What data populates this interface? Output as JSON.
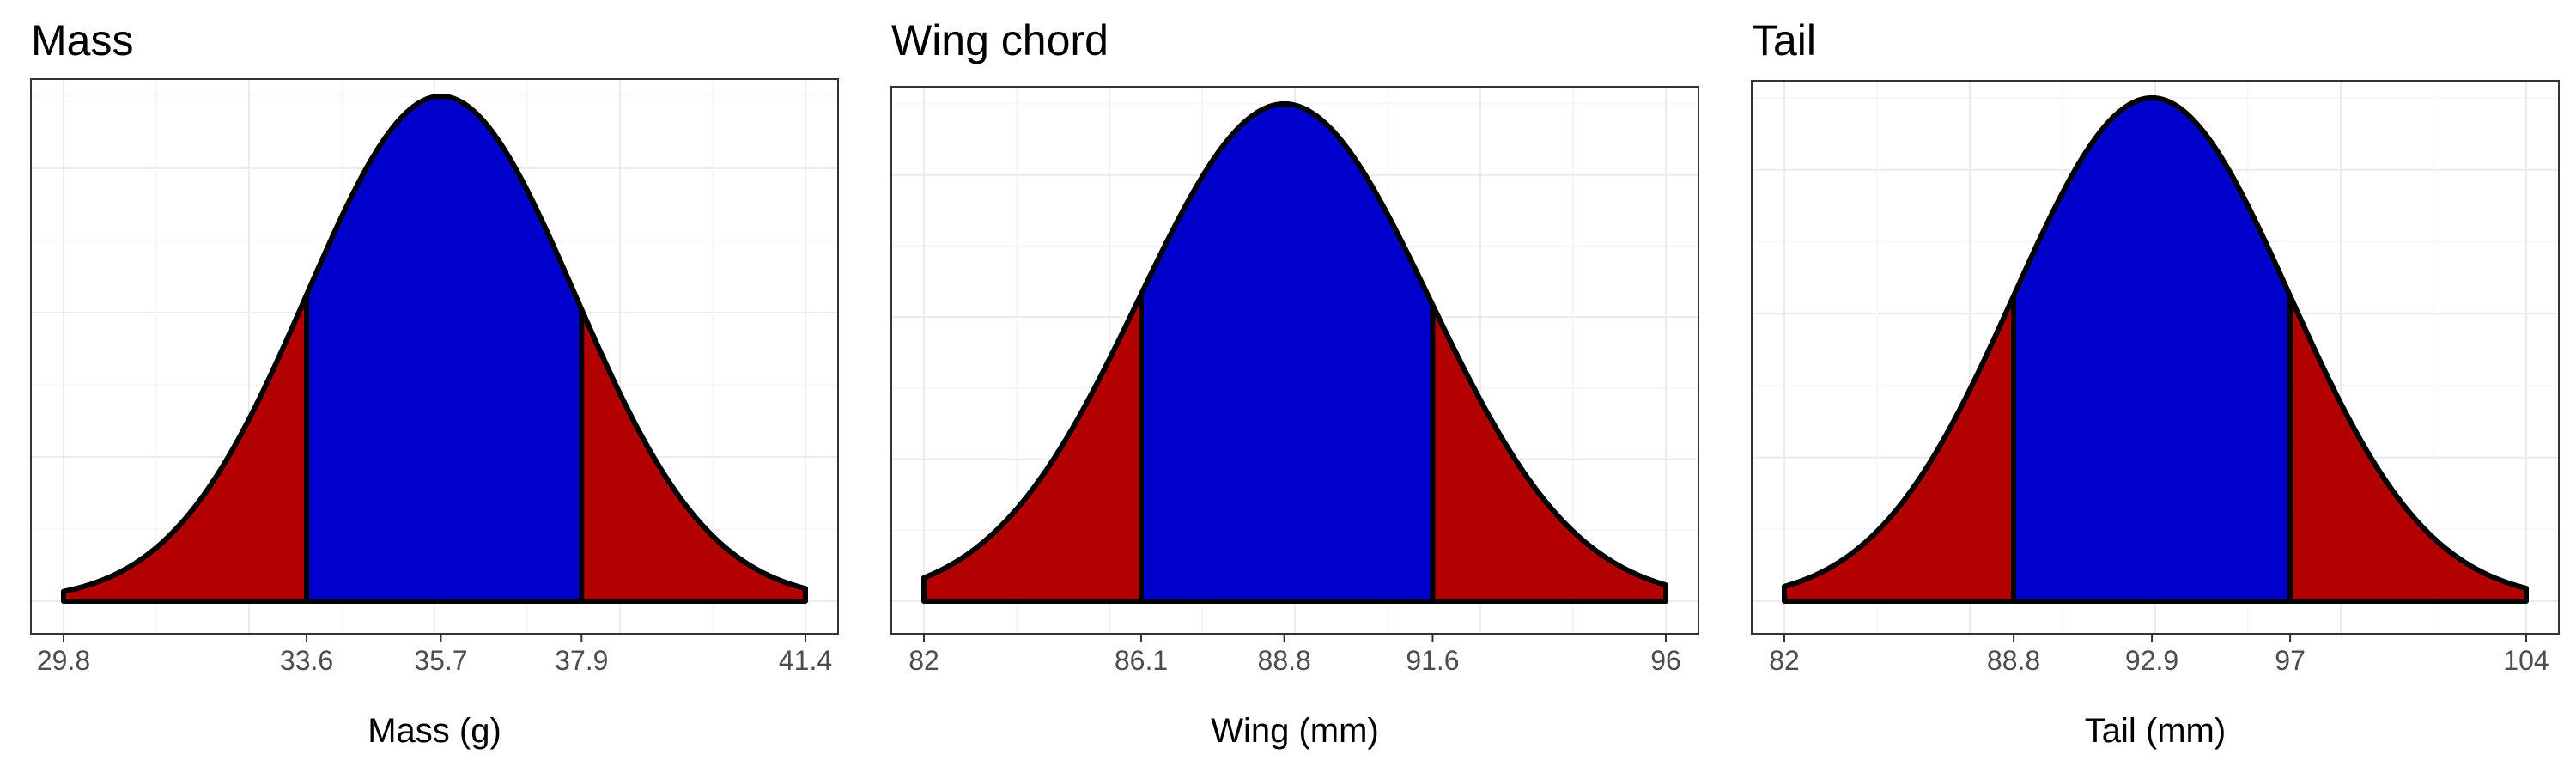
{
  "colors": {
    "center_fill": "#0000CD",
    "tail_fill": "#B30000",
    "outline": "#000000",
    "grid_major": "#EBEBEB",
    "grid_minor": "#F5F5F5",
    "panel_border": "#333333"
  },
  "chart_data": [
    {
      "type": "area",
      "title": "Mass",
      "xlabel": "Mass (g)",
      "ylabel": "",
      "distribution": "normal",
      "mean": 35.7,
      "sd": 2.1,
      "xlim": [
        29.8,
        41.4
      ],
      "shaded_regions": [
        {
          "from": 29.8,
          "to": 33.6,
          "fill": "tail"
        },
        {
          "from": 33.6,
          "to": 37.9,
          "fill": "center"
        },
        {
          "from": 37.9,
          "to": 41.4,
          "fill": "tail"
        }
      ],
      "x_ticks": [
        29.8,
        33.6,
        35.7,
        37.9,
        41.4
      ],
      "x_tick_labels": [
        "29.8",
        "33.6",
        "35.7",
        "37.9",
        "41.4"
      ],
      "grid": true,
      "y_ticks_shown": false
    },
    {
      "type": "area",
      "title": "Wing chord",
      "xlabel": "Wing (mm)",
      "ylabel": "",
      "distribution": "normal",
      "mean": 88.8,
      "sd": 2.75,
      "xlim": [
        82,
        96
      ],
      "shaded_regions": [
        {
          "from": 82,
          "to": 86.1,
          "fill": "tail"
        },
        {
          "from": 86.1,
          "to": 91.6,
          "fill": "center"
        },
        {
          "from": 91.6,
          "to": 96,
          "fill": "tail"
        }
      ],
      "x_ticks": [
        82,
        86.1,
        88.8,
        91.6,
        96
      ],
      "x_tick_labels": [
        "82",
        "86.1",
        "88.8",
        "91.6",
        "96"
      ],
      "grid": true,
      "y_ticks_shown": false
    },
    {
      "type": "area",
      "title": "Tail",
      "xlabel": "Tail (mm)",
      "ylabel": "",
      "distribution": "normal",
      "mean": 92.9,
      "sd": 4.1,
      "xlim": [
        82,
        104
      ],
      "shaded_regions": [
        {
          "from": 82,
          "to": 88.8,
          "fill": "tail"
        },
        {
          "from": 88.8,
          "to": 97,
          "fill": "center"
        },
        {
          "from": 97,
          "to": 104,
          "fill": "tail"
        }
      ],
      "x_ticks": [
        82,
        88.8,
        92.9,
        97,
        104
      ],
      "x_tick_labels": [
        "82",
        "88.8",
        "92.9",
        "97",
        "104"
      ],
      "grid": true,
      "y_ticks_shown": false
    }
  ]
}
